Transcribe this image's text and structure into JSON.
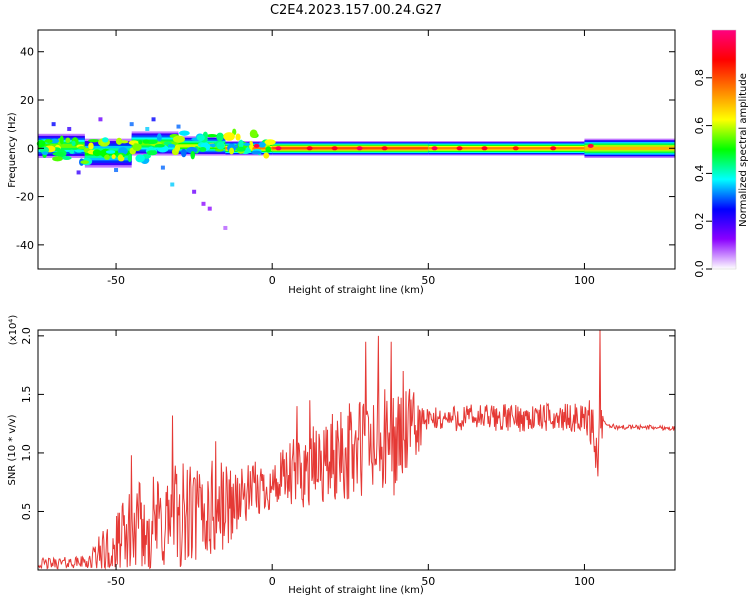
{
  "title": "C2E4.2023.157.00.24.G27",
  "colors": {
    "snr_line": "#e53935",
    "axis": "#000000",
    "background": "#ffffff"
  },
  "chart_data": [
    {
      "type": "heatmap",
      "name": "spectrogram",
      "xlabel": "Height of straight line (km)",
      "ylabel": "Frequency (Hz)",
      "xlim": [
        -75,
        129
      ],
      "ylim": [
        -50,
        49
      ],
      "xticks": [
        -50,
        0,
        50,
        100
      ],
      "xtick_labels": [
        "-50",
        "0",
        "50",
        "100"
      ],
      "yticks": [
        -40,
        -20,
        0,
        20,
        40
      ],
      "ytick_labels": [
        "-40",
        "-20",
        "0",
        "20",
        "40"
      ],
      "colorbar": {
        "label": "Normalized spectral amplitude",
        "range": [
          0.0,
          1.0
        ],
        "ticks": [
          0.0,
          0.2,
          0.4,
          0.6,
          0.8
        ],
        "tick_labels": [
          "0.0",
          "0.2",
          "0.4",
          "0.6",
          "0.8"
        ],
        "colormap": [
          "#ffffff",
          "#8a00ff",
          "#0000ff",
          "#00ffff",
          "#00ff00",
          "#ffff00",
          "#ff8000",
          "#ff0000",
          "#ff0080"
        ]
      },
      "band_segments": [
        {
          "x0": -75,
          "x1": -60,
          "center": 1,
          "halfwidth": 5,
          "peak": 0.55
        },
        {
          "x0": -60,
          "x1": -45,
          "center": -2,
          "halfwidth": 6,
          "peak": 0.5
        },
        {
          "x0": -45,
          "x1": -30,
          "center": 2,
          "halfwidth": 5,
          "peak": 0.55
        },
        {
          "x0": -30,
          "x1": -15,
          "center": 1,
          "halfwidth": 4,
          "peak": 0.6
        },
        {
          "x0": -15,
          "x1": 0,
          "center": 0,
          "halfwidth": 3,
          "peak": 0.75
        },
        {
          "x0": 0,
          "x1": 50,
          "center": 0,
          "halfwidth": 3,
          "peak": 0.8
        },
        {
          "x0": 50,
          "x1": 100,
          "center": 0,
          "halfwidth": 3,
          "peak": 0.75
        },
        {
          "x0": 100,
          "x1": 129,
          "center": 0,
          "halfwidth": 4,
          "peak": 0.7
        }
      ],
      "hotspots": [
        {
          "x": -5,
          "y": 1,
          "v": 0.95
        },
        {
          "x": 2,
          "y": 0,
          "v": 0.95
        },
        {
          "x": 12,
          "y": 0,
          "v": 0.9
        },
        {
          "x": 20,
          "y": 0,
          "v": 0.9
        },
        {
          "x": 28,
          "y": 0,
          "v": 0.95
        },
        {
          "x": 36,
          "y": 0,
          "v": 0.9
        },
        {
          "x": 52,
          "y": 0,
          "v": 0.95
        },
        {
          "x": 60,
          "y": 0,
          "v": 0.9
        },
        {
          "x": 68,
          "y": 0,
          "v": 0.9
        },
        {
          "x": 78,
          "y": 0,
          "v": 0.85
        },
        {
          "x": 90,
          "y": 0,
          "v": 0.9
        },
        {
          "x": 102,
          "y": 1,
          "v": 0.95
        }
      ],
      "scatter_points": [
        {
          "x": -70,
          "y": 10,
          "v": 0.25
        },
        {
          "x": -65,
          "y": 8,
          "v": 0.2
        },
        {
          "x": -62,
          "y": -10,
          "v": 0.2
        },
        {
          "x": -55,
          "y": 12,
          "v": 0.15
        },
        {
          "x": -50,
          "y": -9,
          "v": 0.3
        },
        {
          "x": -45,
          "y": 10,
          "v": 0.3
        },
        {
          "x": -40,
          "y": 8,
          "v": 0.35
        },
        {
          "x": -38,
          "y": 12,
          "v": 0.25
        },
        {
          "x": -35,
          "y": -8,
          "v": 0.3
        },
        {
          "x": -32,
          "y": -15,
          "v": 0.35
        },
        {
          "x": -30,
          "y": 9,
          "v": 0.3
        },
        {
          "x": -25,
          "y": -18,
          "v": 0.15
        },
        {
          "x": -22,
          "y": -23,
          "v": 0.12
        },
        {
          "x": -20,
          "y": -25,
          "v": 0.12
        },
        {
          "x": -15,
          "y": -33,
          "v": 0.08
        }
      ]
    },
    {
      "type": "line",
      "name": "snr",
      "xlabel": "Height of straight line (km)",
      "ylabel": "SNR (10 * v/v)",
      "y_multiplier": "(x10⁴)",
      "xlim": [
        -75,
        129
      ],
      "ylim": [
        0,
        2.05
      ],
      "xticks": [
        -50,
        0,
        50,
        100
      ],
      "xtick_labels": [
        "-50",
        "0",
        "50",
        "100"
      ],
      "yticks": [
        0.5,
        1.0,
        1.5,
        2.0
      ],
      "ytick_labels": [
        "0.5",
        "1.0",
        "1.5",
        "2.0"
      ],
      "envelope": {
        "x": [
          -75,
          -60,
          -50,
          -45,
          -40,
          -35,
          -30,
          -25,
          -20,
          -15,
          -10,
          -5,
          0,
          5,
          10,
          15,
          20,
          25,
          30,
          35,
          40,
          45,
          50,
          60,
          70,
          80,
          90,
          100,
          103,
          104,
          105,
          106,
          110,
          120,
          129
        ],
        "base": [
          0.05,
          0.07,
          0.15,
          0.3,
          0.35,
          0.4,
          0.45,
          0.45,
          0.5,
          0.55,
          0.62,
          0.68,
          0.72,
          0.78,
          0.85,
          0.9,
          0.95,
          1.0,
          1.05,
          1.05,
          1.1,
          1.2,
          1.28,
          1.3,
          1.3,
          1.3,
          1.3,
          1.3,
          1.25,
          0.9,
          1.2,
          1.25,
          1.22,
          1.22,
          1.21
        ],
        "amplitude": [
          0.05,
          0.05,
          0.35,
          0.4,
          0.45,
          0.45,
          0.5,
          0.45,
          0.45,
          0.4,
          0.25,
          0.25,
          0.2,
          0.3,
          0.35,
          0.35,
          0.4,
          0.45,
          0.5,
          0.5,
          0.45,
          0.35,
          0.1,
          0.12,
          0.12,
          0.12,
          0.12,
          0.12,
          0.25,
          0.3,
          0.4,
          0.03,
          0.02,
          0.02,
          0.02
        ]
      },
      "peaks": [
        {
          "x": -45,
          "y": 0.98
        },
        {
          "x": -32,
          "y": 1.32
        },
        {
          "x": -18,
          "y": 1.1
        },
        {
          "x": 8,
          "y": 1.4
        },
        {
          "x": 12,
          "y": 1.45
        },
        {
          "x": 22,
          "y": 1.35
        },
        {
          "x": 30,
          "y": 1.95
        },
        {
          "x": 34,
          "y": 2.0
        },
        {
          "x": 38,
          "y": 1.95
        },
        {
          "x": 42,
          "y": 1.7
        },
        {
          "x": 105,
          "y": 2.05
        }
      ]
    }
  ]
}
